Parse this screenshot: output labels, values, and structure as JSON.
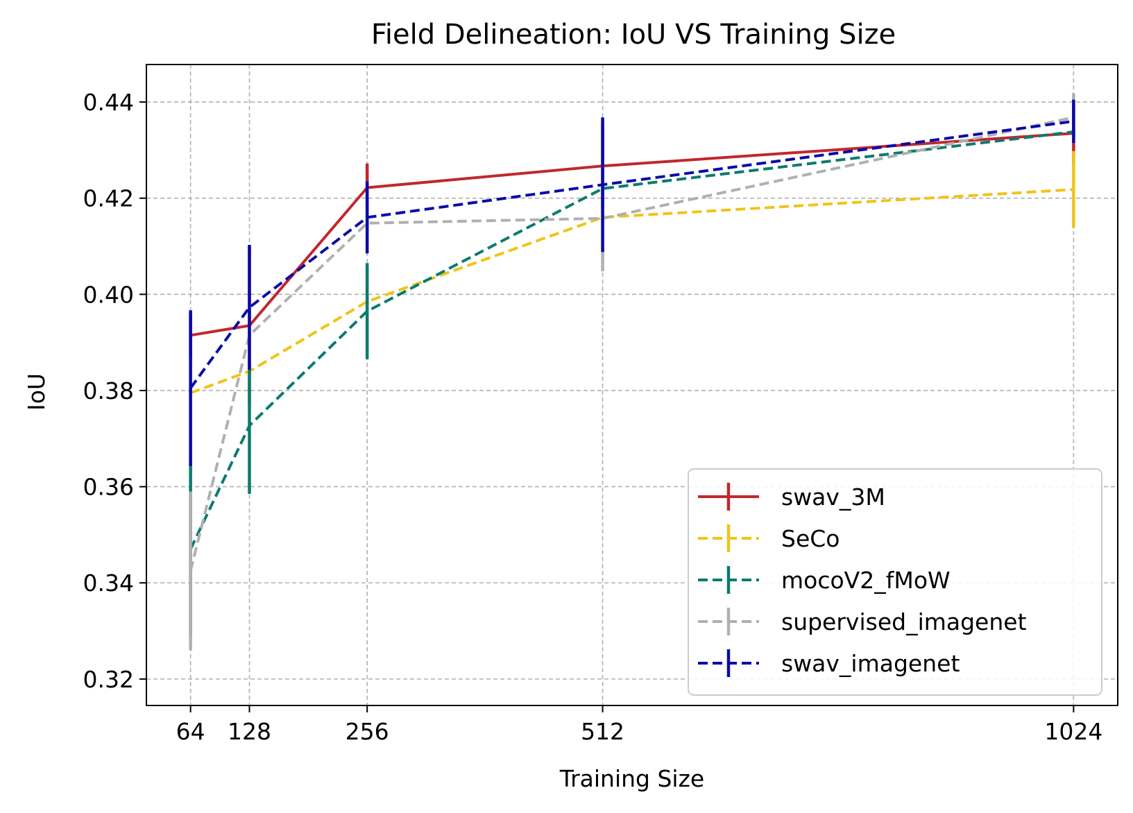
{
  "chart_data": {
    "type": "line",
    "title": "Field Delineation: IoU VS Training Size",
    "xlabel": "Training Size",
    "ylabel": "IoU",
    "x": [
      64,
      128,
      256,
      512,
      1024
    ],
    "x_ticks": [
      "64",
      "128",
      "256",
      "512",
      "1024"
    ],
    "xlim": [
      16,
      1072
    ],
    "ylim": [
      0.3145,
      0.4478
    ],
    "y_ticks": [
      "0.32",
      "0.34",
      "0.36",
      "0.38",
      "0.40",
      "0.42",
      "0.44"
    ],
    "y_tick_values": [
      0.32,
      0.34,
      0.36,
      0.38,
      0.4,
      0.42,
      0.44
    ],
    "grid": true,
    "legend_position": "lower-right",
    "series": [
      {
        "name": "swav_3M",
        "color": "#c1272d",
        "style": "solid",
        "values": [
          0.3915,
          0.3935,
          0.4222,
          0.4267,
          0.4335
        ],
        "errors": [
          0.0045,
          0.0165,
          0.005,
          0.009,
          0.0065
        ]
      },
      {
        "name": "SeCo",
        "color": "#f0c419",
        "style": "dashed",
        "values": [
          0.3795,
          0.384,
          0.3985,
          0.416,
          0.4218
        ],
        "errors": [
          0.0005,
          0.001,
          0.001,
          0.0005,
          0.008
        ]
      },
      {
        "name": "mocoV2_fMoW",
        "color": "#0b7b6e",
        "style": "dashed",
        "values": [
          0.347,
          0.3727,
          0.3965,
          0.422,
          0.4338
        ],
        "errors": [
          0.018,
          0.0142,
          0.01,
          0.001,
          0.0005
        ]
      },
      {
        "name": "supervised_imagenet",
        "color": "#b0b0b0",
        "style": "dashed",
        "values": [
          0.3425,
          0.3915,
          0.4148,
          0.4158,
          0.4368
        ],
        "errors": [
          0.0165,
          0.001,
          0.001,
          0.011,
          0.005
        ]
      },
      {
        "name": "swav_imagenet",
        "color": "#0a0aa8",
        "style": "dashed",
        "values": [
          0.3805,
          0.3973,
          0.416,
          0.4228,
          0.436
        ],
        "errors": [
          0.0162,
          0.013,
          0.0075,
          0.014,
          0.0045
        ]
      }
    ]
  }
}
